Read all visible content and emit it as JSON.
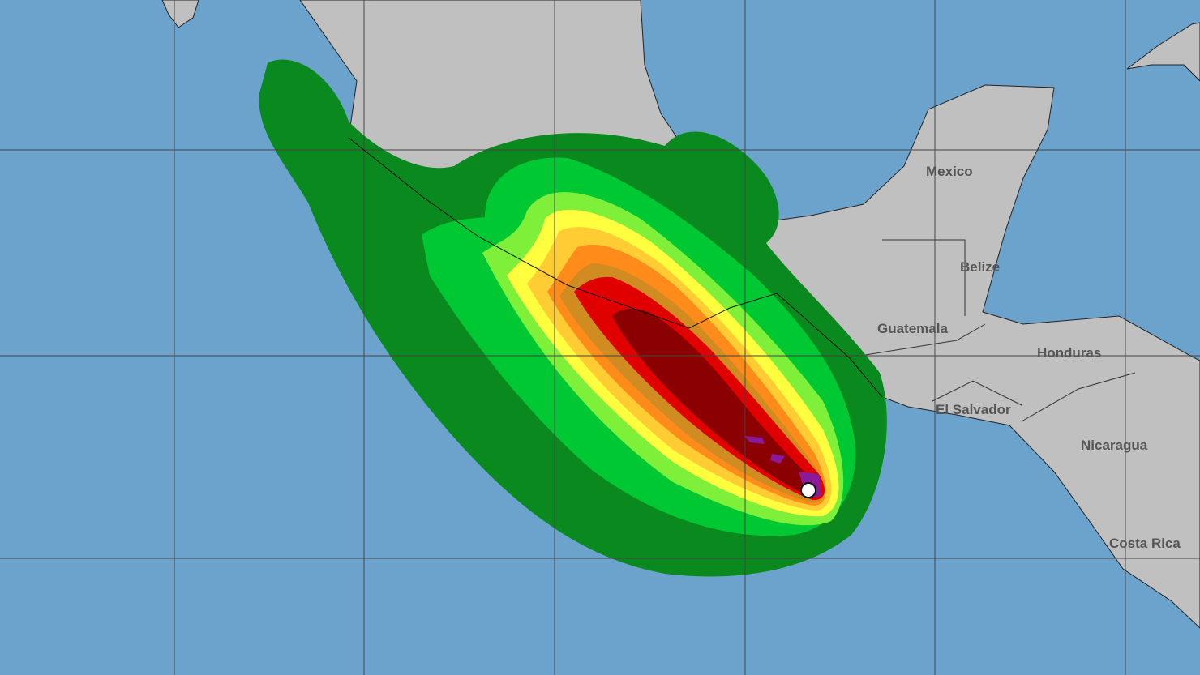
{
  "map": {
    "colors": {
      "ocean": "#6ba3cc",
      "land": "#c0c0c0",
      "bands": [
        "#0a8a1e",
        "#00c832",
        "#7ff03a",
        "#ffff40",
        "#ffcc33",
        "#ff8c1a",
        "#d08c20",
        "#e00000",
        "#8b0000",
        "#8b1a9b"
      ]
    },
    "labels": {
      "mexico": "Mexico",
      "belize": "Belize",
      "guatemala": "Guatemala",
      "honduras": "Honduras",
      "el_salvador": "El Salvador",
      "nicaragua": "Nicaragua",
      "costa_rica": "Costa Rica"
    },
    "storm_center_icon": "white-circle-marker"
  }
}
